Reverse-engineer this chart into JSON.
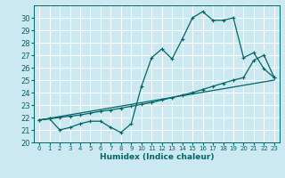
{
  "xlabel": "Humidex (Indice chaleur)",
  "bg_color": "#cce8f0",
  "grid_color": "#ffffff",
  "line_color": "#006666",
  "xlim": [
    -0.5,
    23.5
  ],
  "ylim": [
    20,
    31
  ],
  "xticks": [
    0,
    1,
    2,
    3,
    4,
    5,
    6,
    7,
    8,
    9,
    10,
    11,
    12,
    13,
    14,
    15,
    16,
    17,
    18,
    19,
    20,
    21,
    22,
    23
  ],
  "yticks": [
    20,
    21,
    22,
    23,
    24,
    25,
    26,
    27,
    28,
    29,
    30
  ],
  "line1_x": [
    0,
    1,
    2,
    3,
    4,
    5,
    6,
    7,
    8,
    9,
    10,
    11,
    12,
    13,
    14,
    15,
    16,
    17,
    18,
    19,
    20,
    21,
    22,
    23
  ],
  "line1_y": [
    21.8,
    21.9,
    21.0,
    21.2,
    21.5,
    21.7,
    21.7,
    21.2,
    20.8,
    21.5,
    24.5,
    26.8,
    27.5,
    26.7,
    28.3,
    30.0,
    30.5,
    29.8,
    29.8,
    30.0,
    26.8,
    27.2,
    25.9,
    25.2
  ],
  "line2_x": [
    0,
    1,
    2,
    3,
    4,
    5,
    6,
    7,
    8,
    9,
    10,
    11,
    12,
    13,
    14,
    15,
    16,
    17,
    18,
    19,
    20,
    21,
    22,
    23
  ],
  "line2_y": [
    21.8,
    21.9,
    22.0,
    22.1,
    22.2,
    22.35,
    22.5,
    22.6,
    22.75,
    22.9,
    23.05,
    23.2,
    23.4,
    23.6,
    23.8,
    24.0,
    24.25,
    24.5,
    24.75,
    25.0,
    25.2,
    26.6,
    27.0,
    25.2
  ],
  "line3_x": [
    0,
    23
  ],
  "line3_y": [
    21.8,
    25.0
  ]
}
